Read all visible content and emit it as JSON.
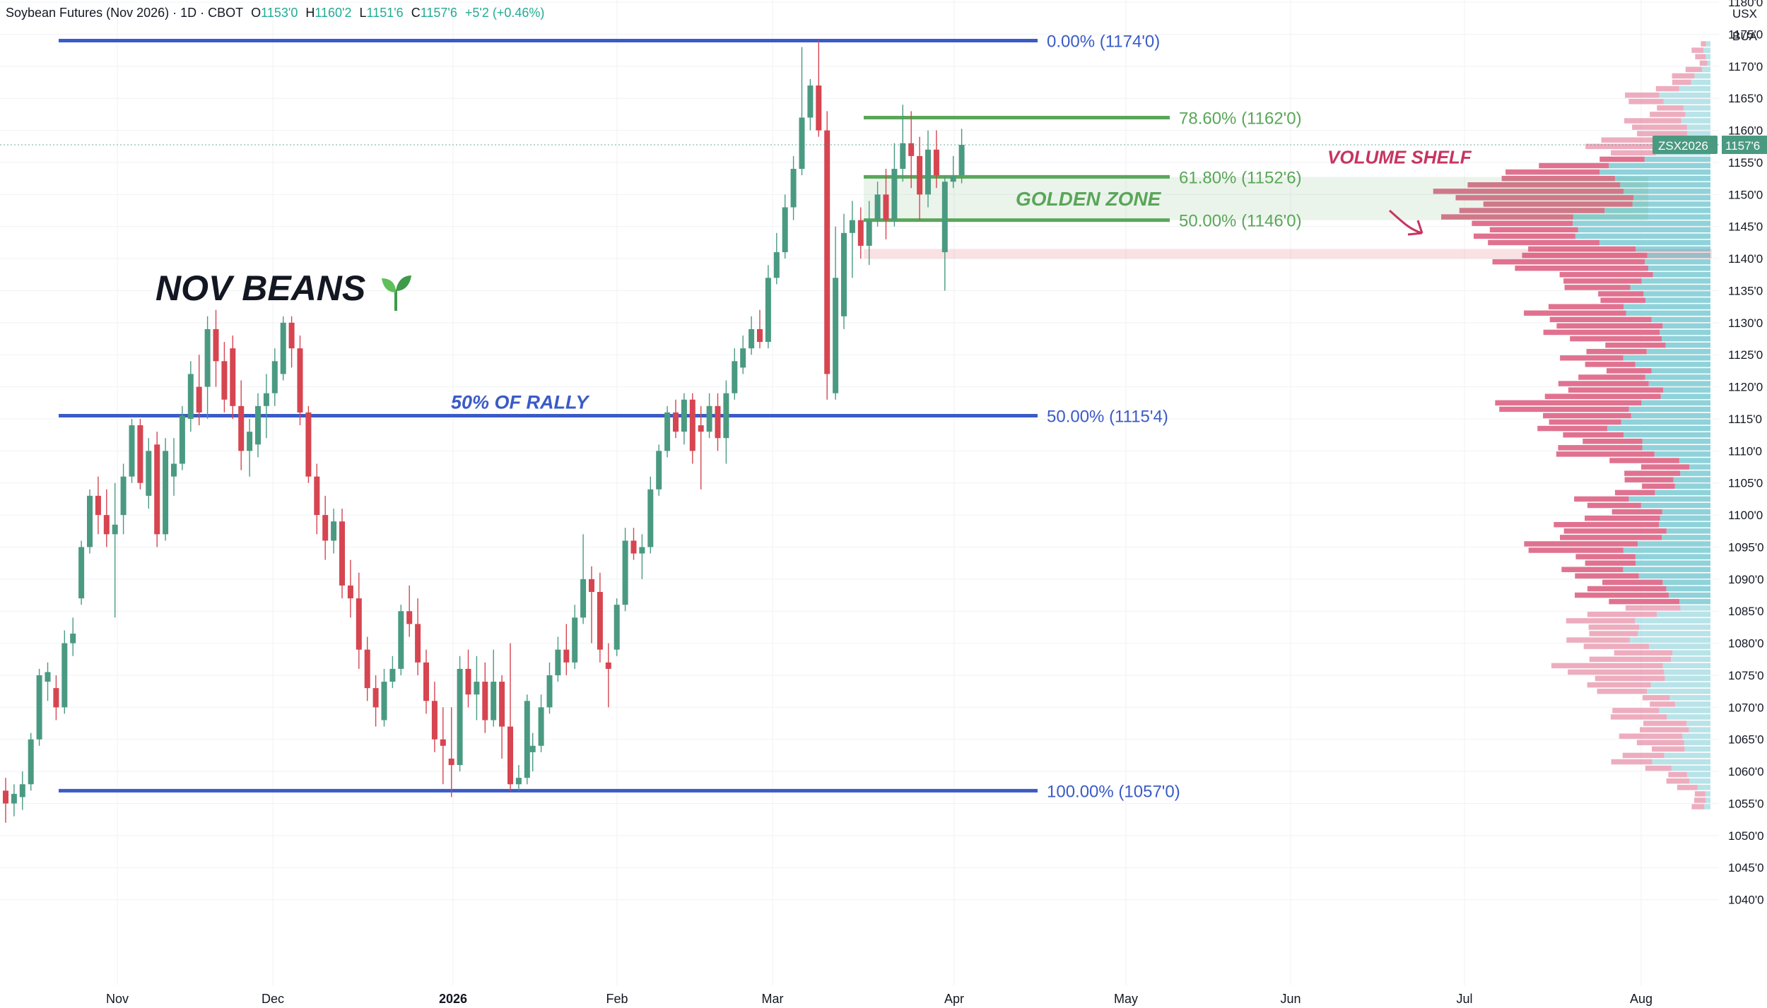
{
  "header": {
    "symbol": "Soybean Futures (Nov 2026) · 1D · CBOT",
    "o_label": "O",
    "o": "1153'0",
    "h_label": "H",
    "h": "1160'2",
    "l_label": "L",
    "l": "1151'6",
    "c_label": "C",
    "c": "1157'6",
    "change": "+5'2 (+0.46%)"
  },
  "currency": [
    "USX",
    "BUA"
  ],
  "colors": {
    "up": "#4a9a82",
    "down": "#d64550",
    "fib_blue": "#3a5bc7",
    "fib_green": "#5aa659",
    "profile_up": "#89d0d8",
    "profile_down": "#de6a8a",
    "volume_shelf": "#c7345f"
  },
  "chart_data": {
    "type": "candlestick",
    "title": "NOV BEANS",
    "title_icon": "seedling-icon",
    "yaxis": {
      "ticks": [
        "1040'0",
        "1045'0",
        "1050'0",
        "1055'0",
        "1060'0",
        "1065'0",
        "1070'0",
        "1075'0",
        "1080'0",
        "1085'0",
        "1090'0",
        "1095'0",
        "1100'0",
        "1105'0",
        "1110'0",
        "1115'0",
        "1120'0",
        "1125'0",
        "1130'0",
        "1135'0",
        "1140'0",
        "1145'0",
        "1150'0",
        "1155'0",
        "1160'0",
        "1165'0",
        "1170'0",
        "1175'0",
        "1180'0"
      ],
      "range": [
        1037,
        1185
      ]
    },
    "xaxis": {
      "ticks": [
        {
          "label": "Nov",
          "bold": false
        },
        {
          "label": "Dec",
          "bold": false
        },
        {
          "label": "2026",
          "bold": true
        },
        {
          "label": "Feb",
          "bold": false
        },
        {
          "label": "Mar",
          "bold": false
        },
        {
          "label": "Apr",
          "bold": false
        },
        {
          "label": "May",
          "bold": false
        },
        {
          "label": "Jun",
          "bold": false
        },
        {
          "label": "Jul",
          "bold": false
        },
        {
          "label": "Aug",
          "bold": false
        }
      ]
    },
    "last_price": {
      "symbol": "ZSX2026",
      "value": "1157'6",
      "price": 1157.75
    },
    "fib_levels": [
      {
        "label": "0.00% (1174'0)",
        "price": 1174.0,
        "color": "blue"
      },
      {
        "label": "78.60% (1162'0)",
        "price": 1162.0,
        "color": "green"
      },
      {
        "label": "61.80% (1152'6)",
        "price": 1152.75,
        "color": "green"
      },
      {
        "label": "50.00% (1146'0)",
        "price": 1146.0,
        "color": "green"
      },
      {
        "label": "50.00% (1115'4)",
        "price": 1115.5,
        "color": "blue"
      },
      {
        "label": "100.00% (1057'0)",
        "price": 1057.0,
        "color": "blue"
      }
    ],
    "zones": [
      {
        "label": "GOLDEN ZONE",
        "from": 1146.0,
        "to": 1152.75
      },
      {
        "label": "",
        "from": 1140.0,
        "to": 1141.5
      }
    ],
    "annotations": [
      {
        "text": "50% OF RALLY",
        "price": 1117.5
      },
      {
        "text": "VOLUME SHELF",
        "price": 1155.5
      }
    ],
    "candles": [
      [
        1057.0,
        1059.0,
        1052.0,
        1055.0
      ],
      [
        1055.0,
        1058.0,
        1053.0,
        1056.5
      ],
      [
        1056.0,
        1060.0,
        1054.0,
        1058.0
      ],
      [
        1058.0,
        1066.0,
        1057.0,
        1065.0
      ],
      [
        1065.0,
        1076.0,
        1064.0,
        1075.0
      ],
      [
        1074.0,
        1077.0,
        1071.0,
        1075.5
      ],
      [
        1073.0,
        1075.0,
        1068.0,
        1070.0
      ],
      [
        1070.0,
        1082.0,
        1069.0,
        1080.0
      ],
      [
        1080.0,
        1084.0,
        1078.0,
        1081.5
      ],
      [
        1087.0,
        1096.0,
        1086.0,
        1095.0
      ],
      [
        1095.0,
        1104.0,
        1094.0,
        1103.0
      ],
      [
        1103.0,
        1106.0,
        1097.0,
        1100.0
      ],
      [
        1100.0,
        1104.0,
        1095.0,
        1097.0
      ],
      [
        1097.0,
        1105.0,
        1084.0,
        1098.5
      ],
      [
        1100.0,
        1108.0,
        1097.0,
        1106.0
      ],
      [
        1106.0,
        1115.0,
        1105.0,
        1114.0
      ],
      [
        1114.0,
        1115.0,
        1104.0,
        1105.0
      ],
      [
        1103.0,
        1112.0,
        1101.0,
        1110.0
      ],
      [
        1111.0,
        1113.0,
        1095.0,
        1097.0
      ],
      [
        1097.0,
        1112.0,
        1096.0,
        1110.0
      ],
      [
        1106.0,
        1112.0,
        1103.0,
        1108.0
      ],
      [
        1108.0,
        1117.0,
        1107.0,
        1115.5
      ],
      [
        1115.0,
        1124.0,
        1113.0,
        1122.0
      ],
      [
        1120.0,
        1125.0,
        1114.0,
        1116.0
      ],
      [
        1120.0,
        1131.0,
        1115.0,
        1129.0
      ],
      [
        1129.0,
        1132.0,
        1120.0,
        1124.0
      ],
      [
        1124.0,
        1127.0,
        1116.0,
        1118.0
      ],
      [
        1126.0,
        1128.0,
        1115.0,
        1117.0
      ],
      [
        1117.0,
        1121.0,
        1107.0,
        1110.0
      ],
      [
        1110.0,
        1115.0,
        1106.0,
        1113.0
      ],
      [
        1111.0,
        1119.0,
        1109.0,
        1117.0
      ],
      [
        1117.0,
        1122.0,
        1112.0,
        1119.0
      ],
      [
        1119.0,
        1126.0,
        1117.0,
        1124.0
      ],
      [
        1122.0,
        1131.0,
        1121.0,
        1130.0
      ],
      [
        1130.0,
        1131.0,
        1123.0,
        1126.0
      ],
      [
        1126.0,
        1128.0,
        1114.0,
        1116.0
      ],
      [
        1116.0,
        1117.0,
        1105.0,
        1106.0
      ],
      [
        1106.0,
        1108.0,
        1097.0,
        1100.0
      ],
      [
        1100.0,
        1103.0,
        1093.0,
        1096.0
      ],
      [
        1096.0,
        1101.0,
        1094.0,
        1099.0
      ],
      [
        1099.0,
        1101.0,
        1087.0,
        1089.0
      ],
      [
        1089.0,
        1093.0,
        1084.0,
        1087.0
      ],
      [
        1087.0,
        1091.0,
        1076.0,
        1079.0
      ],
      [
        1079.0,
        1081.0,
        1071.0,
        1073.0
      ],
      [
        1073.0,
        1075.0,
        1067.0,
        1070.0
      ],
      [
        1068.0,
        1076.0,
        1067.0,
        1074.0
      ],
      [
        1074.0,
        1078.0,
        1073.0,
        1076.0
      ],
      [
        1076.0,
        1086.0,
        1075.0,
        1085.0
      ],
      [
        1085.0,
        1089.0,
        1081.0,
        1083.0
      ],
      [
        1083.0,
        1087.0,
        1075.0,
        1077.0
      ],
      [
        1077.0,
        1079.0,
        1069.0,
        1071.0
      ],
      [
        1071.0,
        1074.0,
        1063.0,
        1065.0
      ],
      [
        1065.0,
        1070.0,
        1058.0,
        1064.0
      ],
      [
        1062.0,
        1070.0,
        1056.0,
        1061.0
      ],
      [
        1061.0,
        1078.0,
        1060.0,
        1076.0
      ],
      [
        1076.0,
        1079.0,
        1070.0,
        1072.0
      ],
      [
        1072.0,
        1078.0,
        1068.0,
        1074.0
      ],
      [
        1074.0,
        1077.0,
        1066.0,
        1068.0
      ],
      [
        1068.0,
        1079.0,
        1067.0,
        1074.0
      ],
      [
        1074.0,
        1075.0,
        1062.0,
        1067.0
      ],
      [
        1067.0,
        1080.0,
        1057.0,
        1058.0
      ],
      [
        1058.0,
        1061.0,
        1057.0,
        1059.0
      ],
      [
        1059.0,
        1072.0,
        1058.0,
        1071.0
      ],
      [
        1063.0,
        1066.0,
        1060.0,
        1064.0
      ],
      [
        1064.0,
        1072.0,
        1063.0,
        1070.0
      ],
      [
        1070.0,
        1077.0,
        1069.0,
        1075.0
      ],
      [
        1075.0,
        1081.0,
        1074.0,
        1079.0
      ],
      [
        1079.0,
        1083.0,
        1075.0,
        1077.0
      ],
      [
        1077.0,
        1086.0,
        1076.0,
        1084.0
      ],
      [
        1084.0,
        1097.0,
        1083.0,
        1090.0
      ],
      [
        1090.0,
        1092.0,
        1080.0,
        1088.0
      ],
      [
        1088.0,
        1091.0,
        1077.0,
        1079.0
      ],
      [
        1077.0,
        1080.0,
        1070.0,
        1076.0
      ],
      [
        1079.0,
        1087.0,
        1078.0,
        1086.0
      ],
      [
        1086.0,
        1098.0,
        1085.0,
        1096.0
      ],
      [
        1096.0,
        1098.0,
        1093.0,
        1094.0
      ],
      [
        1094.0,
        1097.0,
        1090.0,
        1095.0
      ],
      [
        1095.0,
        1106.0,
        1094.0,
        1104.0
      ],
      [
        1104.0,
        1111.0,
        1103.0,
        1110.0
      ],
      [
        1110.0,
        1117.0,
        1109.0,
        1116.0
      ],
      [
        1116.0,
        1118.0,
        1112.0,
        1113.0
      ],
      [
        1113.0,
        1119.0,
        1111.0,
        1118.0
      ],
      [
        1118.0,
        1119.0,
        1108.0,
        1110.0
      ],
      [
        1114.0,
        1117.0,
        1104.0,
        1113.0
      ],
      [
        1113.0,
        1119.0,
        1112.0,
        1117.0
      ],
      [
        1117.0,
        1119.0,
        1110.0,
        1112.0
      ],
      [
        1112.0,
        1121.0,
        1108.0,
        1119.0
      ],
      [
        1119.0,
        1126.0,
        1118.0,
        1124.0
      ],
      [
        1123.0,
        1128.0,
        1122.0,
        1126.0
      ],
      [
        1126.0,
        1131.0,
        1125.0,
        1129.0
      ],
      [
        1129.0,
        1132.0,
        1126.0,
        1127.0
      ],
      [
        1127.0,
        1139.0,
        1126.0,
        1137.0
      ],
      [
        1137.0,
        1144.0,
        1136.0,
        1141.0
      ],
      [
        1141.0,
        1150.0,
        1140.0,
        1148.0
      ],
      [
        1148.0,
        1156.0,
        1146.0,
        1154.0
      ],
      [
        1154.0,
        1173.0,
        1153.0,
        1162.0
      ],
      [
        1162.0,
        1168.0,
        1160.0,
        1167.0
      ],
      [
        1167.0,
        1174.0,
        1159.0,
        1160.0
      ],
      [
        1160.0,
        1163.0,
        1118.0,
        1122.0
      ],
      [
        1119.0,
        1145.0,
        1118.0,
        1137.0
      ],
      [
        1131.0,
        1147.0,
        1129.0,
        1144.0
      ],
      [
        1144.0,
        1149.0,
        1137.0,
        1146.0
      ],
      [
        1146.0,
        1148.0,
        1140.0,
        1142.0
      ],
      [
        1142.0,
        1149.0,
        1139.0,
        1146.0
      ],
      [
        1146.0,
        1152.0,
        1145.0,
        1150.0
      ],
      [
        1150.0,
        1154.0,
        1143.0,
        1146.0
      ],
      [
        1146.0,
        1158.0,
        1145.0,
        1154.0
      ],
      [
        1154.0,
        1164.0,
        1152.0,
        1158.0
      ],
      [
        1158.0,
        1163.0,
        1151.0,
        1156.0
      ],
      [
        1156.0,
        1159.0,
        1146.0,
        1150.0
      ],
      [
        1150.0,
        1160.0,
        1148.0,
        1157.0
      ],
      [
        1157.0,
        1160.0,
        1151.0,
        1153.0
      ],
      [
        1141.0,
        1153.0,
        1135.0,
        1152.0
      ],
      [
        1152.0,
        1156.0,
        1151.0,
        1153.0
      ],
      [
        1153.0,
        1160.25,
        1151.75,
        1157.75
      ]
    ],
    "volume_profile": {
      "row_size": 1.0,
      "range": [
        1054,
        1174
      ],
      "note_free": true
    }
  }
}
